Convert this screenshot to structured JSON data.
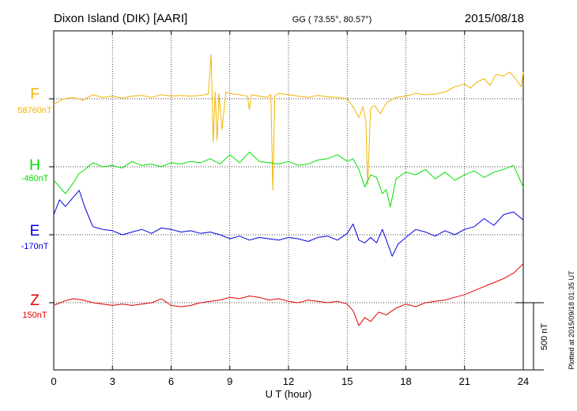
{
  "chart_data": {
    "type": "line",
    "title": "Dixon Island (DIK)  [AARI]",
    "subtitle": "GG ( 73.55°,  80.57°)",
    "date": "2015/08/18",
    "xlabel": "U T (hour)",
    "xlim": [
      0,
      24
    ],
    "x_ticks": [
      "0",
      "3",
      "6",
      "9",
      "12",
      "15",
      "18",
      "21",
      "24"
    ],
    "scale_label": "500 nT",
    "scale_nT": 500,
    "footer": "Plotted at 2015/09/18 01:35 UT",
    "grid": true,
    "series": [
      {
        "name": "F",
        "baseline_label": "58760nT",
        "color": "#f5b400",
        "x": [
          0,
          0.5,
          1,
          1.5,
          2,
          2.5,
          3,
          3.5,
          4,
          4.5,
          5,
          5.5,
          6,
          6.5,
          7,
          7.5,
          7.9,
          8.05,
          8.15,
          8.25,
          8.35,
          8.45,
          8.6,
          8.8,
          9,
          9.5,
          9.9,
          10.0,
          10.1,
          10.5,
          10.9,
          11.1,
          11.2,
          11.3,
          11.5,
          12,
          12.5,
          13,
          13.5,
          14,
          14.5,
          15,
          15.3,
          15.6,
          15.8,
          15.95,
          16.05,
          16.2,
          16.4,
          16.7,
          17,
          17.5,
          18,
          18.5,
          19,
          19.5,
          20,
          20.5,
          21,
          21.3,
          21.6,
          22,
          22.3,
          22.6,
          23,
          23.3,
          23.6,
          23.9,
          24
        ],
        "values": [
          -40,
          0,
          10,
          -10,
          30,
          10,
          20,
          5,
          20,
          25,
          10,
          30,
          20,
          25,
          20,
          25,
          35,
          330,
          -320,
          50,
          -310,
          40,
          -230,
          50,
          40,
          30,
          20,
          -80,
          30,
          20,
          10,
          30,
          -680,
          20,
          40,
          30,
          20,
          10,
          25,
          15,
          10,
          0,
          -60,
          -140,
          -60,
          -160,
          -640,
          -70,
          -50,
          -110,
          -30,
          10,
          20,
          40,
          30,
          35,
          50,
          90,
          110,
          80,
          120,
          150,
          100,
          180,
          170,
          200,
          150,
          90,
          200
        ]
      },
      {
        "name": "H",
        "baseline_label": "-460nT",
        "color": "#00e000",
        "x": [
          0,
          0.3,
          0.6,
          1,
          1.3,
          1.6,
          2,
          2.5,
          3,
          3.5,
          4,
          4.5,
          5,
          5.5,
          6,
          6.5,
          7,
          7.5,
          8,
          8.5,
          9,
          9.5,
          10,
          10.5,
          11,
          11.5,
          12,
          12.5,
          13,
          13.5,
          14,
          14.5,
          15,
          15.3,
          15.6,
          15.9,
          16.2,
          16.5,
          16.8,
          17,
          17.2,
          17.5,
          18,
          18.5,
          19,
          19.5,
          20,
          20.5,
          21,
          21.5,
          22,
          22.5,
          23,
          23.5,
          24
        ],
        "values": [
          -100,
          -150,
          -200,
          -120,
          -50,
          -20,
          30,
          0,
          10,
          -10,
          40,
          10,
          20,
          0,
          30,
          20,
          40,
          30,
          60,
          20,
          90,
          30,
          110,
          40,
          30,
          20,
          40,
          10,
          20,
          50,
          60,
          90,
          40,
          60,
          -20,
          -150,
          -60,
          -80,
          -200,
          -170,
          -300,
          -90,
          -40,
          -60,
          -20,
          -90,
          -40,
          -100,
          -60,
          -30,
          -80,
          -40,
          -20,
          10,
          -150
        ]
      },
      {
        "name": "E",
        "baseline_label": "-170nT",
        "color": "#0000dd",
        "x": [
          0,
          0.3,
          0.6,
          1,
          1.3,
          1.6,
          2,
          2.5,
          3,
          3.5,
          4,
          4.5,
          5,
          5.5,
          6,
          6.5,
          7,
          7.5,
          8,
          8.5,
          9,
          9.5,
          10,
          10.5,
          11,
          11.5,
          12,
          12.5,
          13,
          13.5,
          14,
          14.5,
          15,
          15.3,
          15.6,
          15.9,
          16.2,
          16.5,
          16.8,
          17,
          17.3,
          17.6,
          18,
          18.5,
          19,
          19.5,
          20,
          20.5,
          21,
          21.5,
          22,
          22.5,
          23,
          23.5,
          24
        ],
        "values": [
          150,
          260,
          210,
          280,
          330,
          200,
          60,
          40,
          30,
          0,
          20,
          40,
          10,
          50,
          40,
          20,
          30,
          10,
          20,
          0,
          -30,
          -10,
          -40,
          -20,
          -30,
          -40,
          -20,
          -30,
          -50,
          -20,
          -10,
          -40,
          10,
          80,
          -40,
          -60,
          -20,
          -60,
          40,
          -40,
          -160,
          -70,
          -20,
          40,
          20,
          -10,
          30,
          0,
          40,
          60,
          120,
          70,
          150,
          170,
          110
        ]
      },
      {
        "name": "Z",
        "baseline_label": "150nT",
        "color": "#e00000",
        "x": [
          0,
          0.5,
          1,
          1.5,
          2,
          2.5,
          3,
          3.5,
          4,
          4.5,
          5,
          5.5,
          6,
          6.5,
          7,
          7.5,
          8,
          8.5,
          9,
          9.5,
          10,
          10.5,
          11,
          11.5,
          12,
          12.5,
          13,
          13.5,
          14,
          14.5,
          15,
          15.3,
          15.6,
          15.9,
          16.2,
          16.6,
          17,
          17.5,
          18,
          18.5,
          19,
          19.5,
          20,
          20.5,
          21,
          21.5,
          22,
          22.5,
          23,
          23.5,
          24
        ],
        "values": [
          -20,
          10,
          30,
          20,
          0,
          -10,
          -20,
          -10,
          -20,
          -10,
          0,
          30,
          -20,
          -30,
          -20,
          0,
          10,
          20,
          40,
          30,
          50,
          40,
          20,
          30,
          10,
          0,
          20,
          10,
          0,
          10,
          -10,
          -60,
          -170,
          -110,
          -140,
          -70,
          -90,
          -40,
          -10,
          -30,
          0,
          10,
          20,
          40,
          60,
          90,
          120,
          150,
          180,
          220,
          290
        ]
      }
    ]
  }
}
